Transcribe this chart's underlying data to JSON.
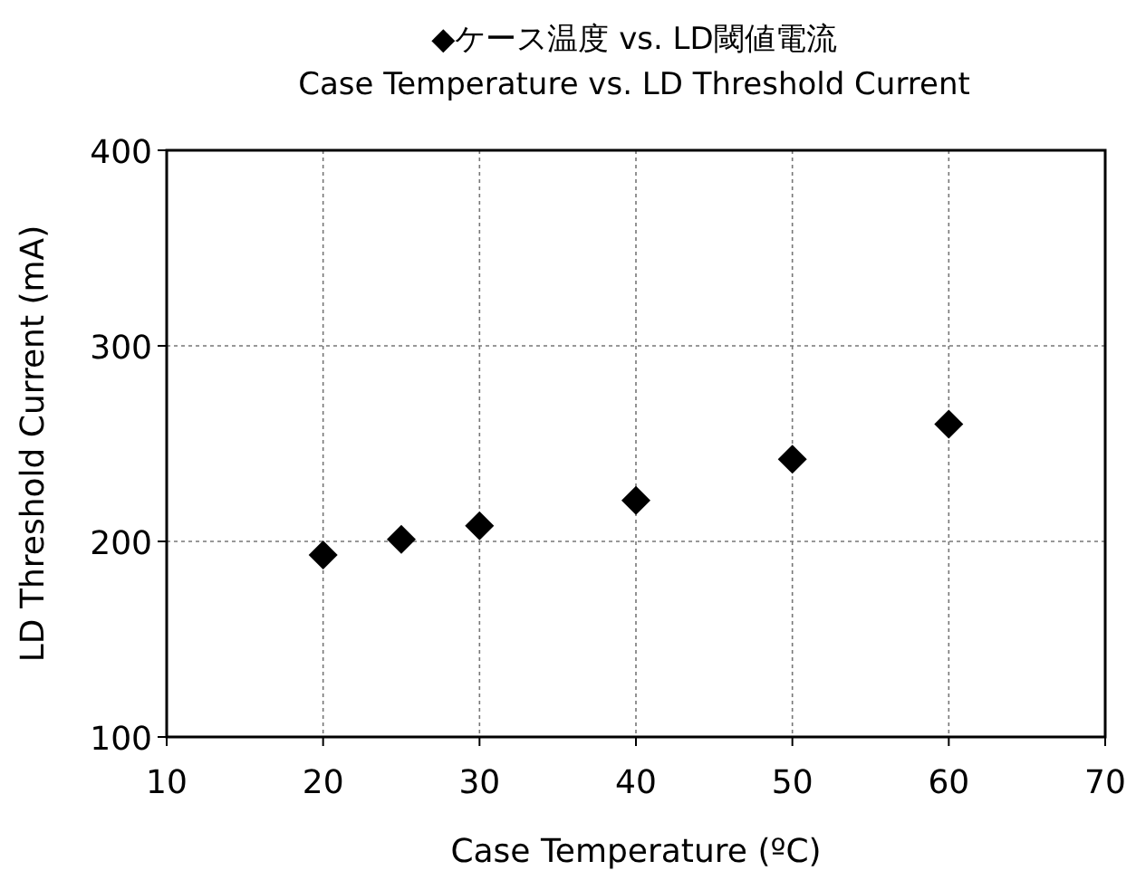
{
  "chart_data": {
    "type": "scatter",
    "title": "◆ケース温度 vs. LD閾値電流",
    "subtitle": "Case Temperature vs. LD Threshold Current",
    "xlabel": "Case Temperature (ºC)",
    "ylabel": "LD Threshold Current (mA)",
    "series": [
      {
        "color": "#000000",
        "x": [
          20,
          25,
          30,
          40,
          50,
          60
        ],
        "values": [
          193,
          201,
          208,
          221,
          242,
          260
        ]
      }
    ],
    "xlim": [
      10,
      70
    ],
    "xticks": [
      10,
      20,
      30,
      40,
      50,
      60,
      70
    ],
    "ylim": [
      100,
      400
    ],
    "yticks": [
      100,
      200,
      300,
      400
    ],
    "grid": true,
    "marker": "diamond"
  }
}
